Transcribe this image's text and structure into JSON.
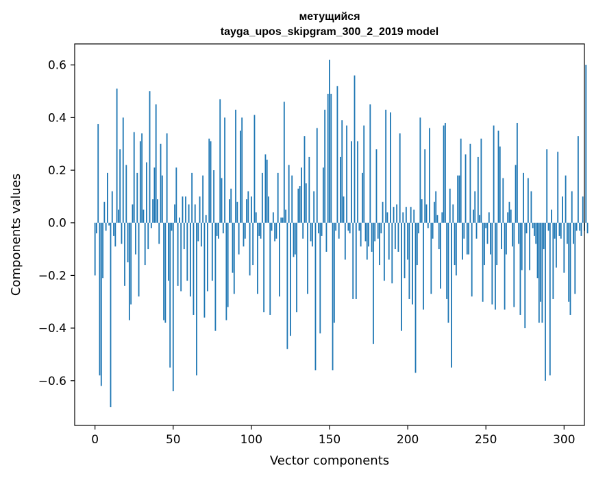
{
  "chart_data": {
    "type": "bar",
    "title_line1": "метущийся",
    "title_line2": "tayga_upos_skipgram_300_2_2019 model",
    "xlabel": "Vector components",
    "ylabel": "Components values",
    "xlim": [
      -13,
      313
    ],
    "ylim": [
      -0.77,
      0.68
    ],
    "xticks": [
      0,
      50,
      100,
      150,
      200,
      250,
      300
    ],
    "xtick_labels": [
      "0",
      "50",
      "100",
      "150",
      "200",
      "250",
      "300"
    ],
    "yticks": [
      -0.6,
      -0.4,
      -0.2,
      0.0,
      0.2,
      0.4,
      0.6
    ],
    "ytick_labels": [
      "−0.6",
      "−0.4",
      "−0.2",
      "0.0",
      "0.2",
      "0.4",
      "0.6"
    ],
    "bar_color": "#1f77b4",
    "grid": false,
    "values": [
      -0.2,
      -0.04,
      0.375,
      -0.58,
      -0.62,
      -0.21,
      0.08,
      -0.03,
      0.19,
      -0.01,
      -0.7,
      0.12,
      -0.05,
      -0.09,
      0.51,
      0.05,
      0.28,
      -0.08,
      0.4,
      -0.24,
      0.22,
      -0.15,
      -0.37,
      -0.31,
      0.07,
      0.345,
      -0.12,
      0.19,
      -0.28,
      0.31,
      0.34,
      0.05,
      -0.16,
      0.23,
      -0.1,
      0.5,
      -0.02,
      0.09,
      0.21,
      0.45,
      0.09,
      -0.08,
      0.3,
      0.18,
      -0.37,
      -0.38,
      0.34,
      -0.22,
      -0.55,
      -0.03,
      -0.64,
      0.07,
      0.21,
      -0.24,
      0.02,
      -0.26,
      0.1,
      -0.1,
      0.1,
      -0.22,
      0.07,
      -0.28,
      0.19,
      -0.35,
      0.07,
      -0.58,
      -0.07,
      0.1,
      -0.09,
      0.18,
      -0.36,
      0.03,
      -0.26,
      0.32,
      0.31,
      -0.22,
      0.2,
      -0.41,
      -0.05,
      -0.06,
      0.47,
      0.17,
      -0.04,
      0.4,
      -0.37,
      -0.32,
      0.09,
      0.13,
      -0.19,
      -0.27,
      0.43,
      0.08,
      -0.12,
      0.35,
      0.4,
      -0.09,
      -0.06,
      0.09,
      0.12,
      -0.2,
      0.1,
      -0.16,
      0.41,
      0.04,
      -0.27,
      -0.05,
      -0.06,
      0.19,
      -0.34,
      0.26,
      0.24,
      0.1,
      -0.35,
      -0.03,
      0.04,
      -0.07,
      -0.06,
      0.19,
      -0.28,
      0.02,
      0.02,
      0.46,
      0.05,
      -0.48,
      0.22,
      -0.43,
      0.18,
      -0.13,
      -0.12,
      -0.34,
      0.13,
      0.14,
      0.21,
      -0.06,
      0.33,
      0.15,
      -0.27,
      0.25,
      -0.07,
      -0.09,
      0.12,
      -0.56,
      0.36,
      -0.04,
      -0.42,
      -0.05,
      0.21,
      0.43,
      -0.11,
      0.49,
      0.62,
      0.49,
      -0.56,
      -0.38,
      -0.03,
      0.52,
      -0.06,
      0.25,
      0.39,
      0.1,
      -0.14,
      0.37,
      -0.03,
      -0.04,
      0.31,
      -0.29,
      0.56,
      -0.29,
      0.31,
      -0.03,
      -0.09,
      0.19,
      0.37,
      -0.07,
      -0.14,
      -0.09,
      0.45,
      -0.11,
      -0.46,
      -0.07,
      0.28,
      -0.06,
      -0.16,
      -0.04,
      0.08,
      -0.22,
      0.43,
      0.04,
      -0.14,
      0.42,
      -0.23,
      0.06,
      -0.1,
      0.07,
      -0.11,
      0.34,
      -0.41,
      0.04,
      -0.21,
      0.06,
      -0.14,
      -0.29,
      0.06,
      -0.31,
      0.05,
      -0.57,
      -0.16,
      -0.04,
      0.4,
      0.09,
      -0.33,
      0.28,
      0.07,
      -0.02,
      0.36,
      -0.27,
      -0.06,
      0.08,
      0.12,
      0.03,
      -0.1,
      -0.25,
      0.04,
      0.37,
      0.38,
      -0.29,
      -0.38,
      0.13,
      -0.55,
      0.07,
      -0.16,
      -0.2,
      0.18,
      0.18,
      0.32,
      -0.14,
      -0.06,
      0.26,
      -0.12,
      -0.12,
      0.3,
      -0.28,
      0.05,
      0.12,
      -0.06,
      0.25,
      0.03,
      0.32,
      -0.3,
      -0.16,
      -0.02,
      -0.08,
      0.04,
      -0.12,
      -0.31,
      0.37,
      -0.33,
      -0.16,
      0.35,
      0.29,
      -0.1,
      0.17,
      -0.33,
      -0.12,
      0.04,
      0.08,
      0.05,
      -0.09,
      -0.32,
      0.22,
      0.38,
      -0.08,
      -0.35,
      -0.18,
      0.19,
      -0.4,
      -0.04,
      0.17,
      -0.18,
      0.12,
      -0.02,
      -0.05,
      -0.08,
      -0.21,
      -0.38,
      -0.3,
      -0.38,
      -0.1,
      -0.6,
      0.28,
      -0.03,
      -0.58,
      0.05,
      -0.29,
      -0.06,
      -0.17,
      0.27,
      -0.05,
      -0.06,
      0.1,
      -0.19,
      0.18,
      -0.08,
      -0.3,
      -0.35,
      0.12,
      -0.08,
      -0.27,
      -0.03,
      0.33,
      -0.03,
      -0.05,
      0.1,
      -0.03,
      0.6,
      -0.04
    ]
  }
}
